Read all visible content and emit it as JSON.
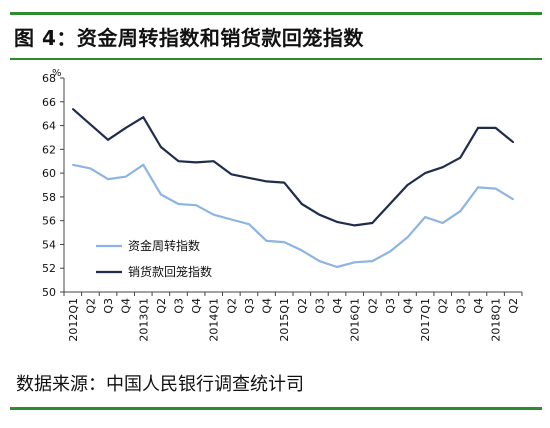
{
  "header": {
    "title": "图 4：资金周转指数和销货款回笼指数"
  },
  "footer": {
    "source": "数据来源：中国人民银行调查统计司"
  },
  "colors": {
    "green_rule": "#2e8b2e",
    "series_light": "#8db4e2",
    "series_dark": "#1f2d4d"
  },
  "chart_data": {
    "type": "line",
    "title": "",
    "xlabel": "",
    "ylabel": "",
    "y_unit": "%",
    "ylim": [
      50,
      68
    ],
    "yticks": [
      50,
      52,
      54,
      56,
      58,
      60,
      62,
      64,
      66,
      68
    ],
    "grid": false,
    "legend": "center-left",
    "categories": [
      "2012Q1",
      "Q2",
      "Q3",
      "Q4",
      "2013Q1",
      "Q2",
      "Q3",
      "Q4",
      "2014Q1",
      "Q2",
      "Q3",
      "Q4",
      "2015Q1",
      "Q2",
      "Q3",
      "Q4",
      "2016Q1",
      "Q2",
      "Q3",
      "Q4",
      "2017Q1",
      "Q2",
      "Q3",
      "Q4",
      "2018Q1",
      "Q2"
    ],
    "series": [
      {
        "name": "资金周转指数",
        "color": "#8db4e2",
        "values": [
          60.7,
          60.4,
          59.5,
          59.7,
          60.7,
          58.2,
          57.4,
          57.3,
          56.5,
          56.1,
          55.7,
          54.3,
          54.2,
          53.5,
          52.6,
          52.1,
          52.5,
          52.6,
          53.4,
          54.6,
          56.3,
          55.8,
          56.8,
          58.8,
          58.7,
          57.8
        ]
      },
      {
        "name": "销货款回笼指数",
        "color": "#1f2d4d",
        "values": [
          65.4,
          64.1,
          62.8,
          63.8,
          64.7,
          62.2,
          61.0,
          60.9,
          61.0,
          59.9,
          59.6,
          59.3,
          59.2,
          57.4,
          56.5,
          55.9,
          55.6,
          55.8,
          57.4,
          59.0,
          60.0,
          60.5,
          61.3,
          63.8,
          63.8,
          62.6
        ]
      }
    ]
  }
}
